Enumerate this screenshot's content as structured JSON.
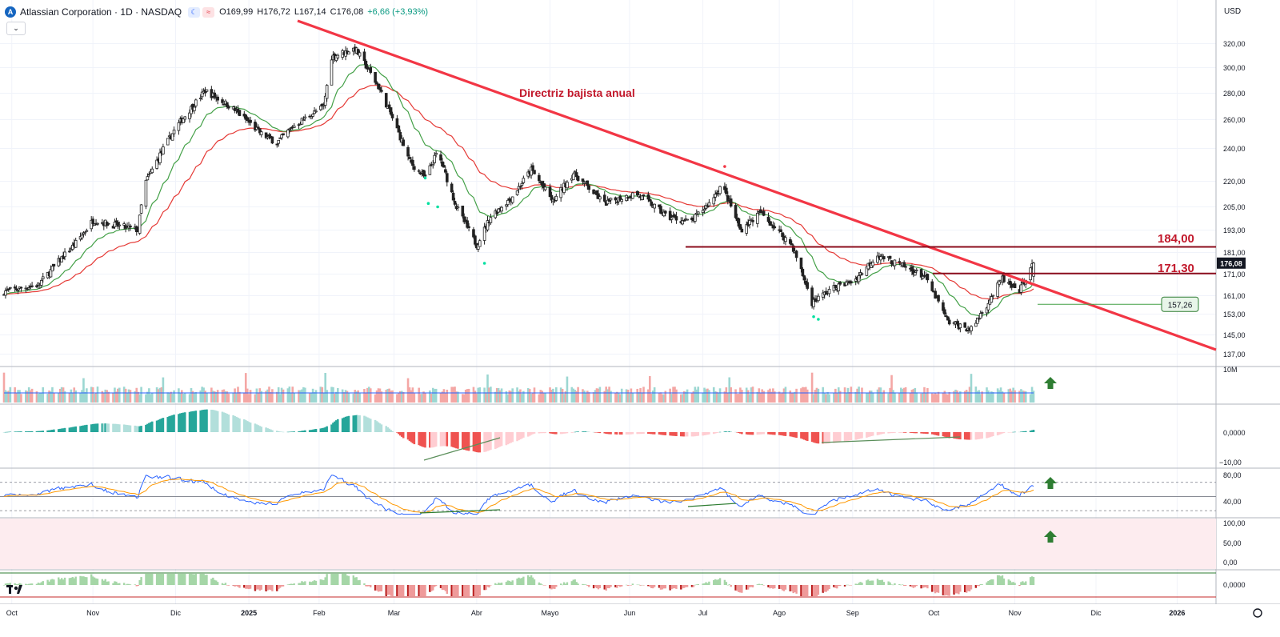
{
  "header": {
    "logo_letter": "A",
    "title": "Atlassian Corporation · 1D · NASDAQ",
    "open": "O169,99",
    "high": "H176,72",
    "low": "L167,14",
    "close": "C176,08",
    "change": "+6,66 (+3,93%)",
    "currency": "USD",
    "collapse_glyph": "⌄",
    "pill_moon": "☾",
    "pill_wave": "≈"
  },
  "colors": {
    "up": "#26a69a",
    "down": "#ef5350",
    "trendline": "#f23645",
    "ma_fast": "#43a047",
    "ma_slow": "#e53935",
    "level": "#8b0d1c",
    "annotation": "#c2182b",
    "rsi": "#2962ff",
    "rsi_ma": "#ff9800",
    "arrow": "#2e7d32",
    "stroke": "#222222"
  },
  "chart_data": {
    "type": "candlestick",
    "symbol": "Atlassian Corporation · 1D · NASDAQ",
    "y_axis_ticks": [
      "320,00",
      "300,00",
      "280,00",
      "260,00",
      "240,00",
      "220,00",
      "205,00",
      "193,00",
      "181,00",
      "171,00",
      "161,00",
      "153,00",
      "145,00",
      "137,00"
    ],
    "y_axis_tick_values": [
      320,
      300,
      280,
      260,
      240,
      220,
      205,
      193,
      181,
      171,
      161,
      153,
      145,
      137
    ],
    "x_axis_labels": [
      "Oct",
      "Nov",
      "Dic",
      "2025",
      "Feb",
      "Mar",
      "Abr",
      "Mayo",
      "Jun",
      "Jul",
      "Ago",
      "Sep",
      "Oct",
      "Nov",
      "Dic",
      "2026"
    ],
    "close_anchors": [
      {
        "d": 0,
        "v": 163
      },
      {
        "d": 22,
        "v": 166
      },
      {
        "d": 45,
        "v": 185
      },
      {
        "d": 57,
        "v": 198
      },
      {
        "d": 86,
        "v": 193
      },
      {
        "d": 90,
        "v": 218
      },
      {
        "d": 110,
        "v": 254
      },
      {
        "d": 129,
        "v": 282
      },
      {
        "d": 145,
        "v": 270
      },
      {
        "d": 165,
        "v": 250
      },
      {
        "d": 175,
        "v": 244
      },
      {
        "d": 185,
        "v": 255
      },
      {
        "d": 205,
        "v": 270
      },
      {
        "d": 210,
        "v": 309
      },
      {
        "d": 225,
        "v": 316
      },
      {
        "d": 240,
        "v": 285
      },
      {
        "d": 260,
        "v": 232
      },
      {
        "d": 270,
        "v": 222
      },
      {
        "d": 278,
        "v": 238
      },
      {
        "d": 290,
        "v": 205
      },
      {
        "d": 303,
        "v": 185
      },
      {
        "d": 312,
        "v": 200
      },
      {
        "d": 325,
        "v": 210
      },
      {
        "d": 338,
        "v": 227
      },
      {
        "d": 352,
        "v": 208
      },
      {
        "d": 365,
        "v": 225
      },
      {
        "d": 385,
        "v": 207
      },
      {
        "d": 405,
        "v": 213
      },
      {
        "d": 425,
        "v": 200
      },
      {
        "d": 440,
        "v": 197
      },
      {
        "d": 452,
        "v": 207
      },
      {
        "d": 460,
        "v": 218
      },
      {
        "d": 472,
        "v": 193
      },
      {
        "d": 485,
        "v": 202
      },
      {
        "d": 505,
        "v": 185
      },
      {
        "d": 518,
        "v": 158
      },
      {
        "d": 530,
        "v": 164
      },
      {
        "d": 545,
        "v": 168
      },
      {
        "d": 560,
        "v": 180
      },
      {
        "d": 575,
        "v": 175
      },
      {
        "d": 590,
        "v": 170
      },
      {
        "d": 605,
        "v": 150
      },
      {
        "d": 620,
        "v": 147
      },
      {
        "d": 630,
        "v": 157
      },
      {
        "d": 640,
        "v": 169
      },
      {
        "d": 650,
        "v": 162
      },
      {
        "d": 660,
        "v": 176.08
      }
    ],
    "last_price": "176,08",
    "price_levels": [
      {
        "label": "184,00",
        "value": 184
      },
      {
        "label": "171,30",
        "value": 171.3
      }
    ],
    "ma_tag": {
      "label": "157,26",
      "value": 157.26
    },
    "annotation": "Directriz bajista anual",
    "volume_axis": [
      "10M"
    ],
    "macd_axis": [
      "0,0000",
      "−10,00"
    ],
    "rsi_axis": [
      "80,00",
      "40,00"
    ],
    "rsi_levels": [
      70,
      50,
      30
    ],
    "stoch_axis": [
      "100,00",
      "50,00",
      "0,00"
    ],
    "bottom_axis": [
      "0,0000"
    ]
  }
}
